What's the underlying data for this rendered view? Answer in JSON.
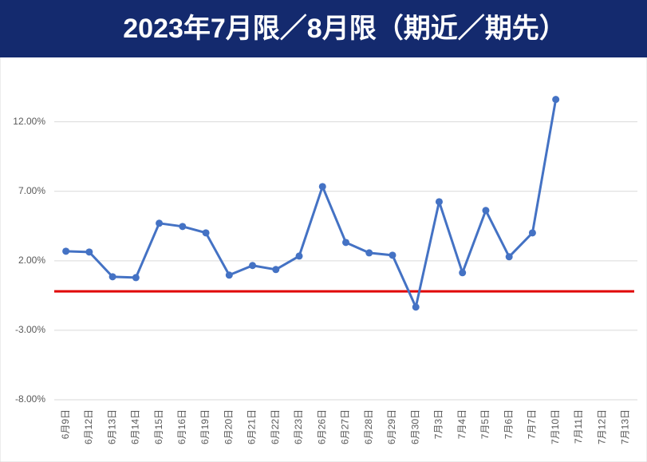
{
  "chart_data": {
    "type": "line",
    "title": "2023年7月限／8月限（期近／期先）",
    "categories": [
      "6月9日",
      "6月12日",
      "6月13日",
      "6月14日",
      "6月15日",
      "6月16日",
      "6月19日",
      "6月20日",
      "6月21日",
      "6月22日",
      "6月23日",
      "6月26日",
      "6月27日",
      "6月28日",
      "6月29日",
      "6月30日",
      "7月3日",
      "7月4日",
      "7月5日",
      "7月6日",
      "7月7日",
      "7月10日",
      "7月11日",
      "7月12日",
      "7月13日"
    ],
    "values": [
      2.69,
      2.63,
      0.85,
      0.79,
      4.7,
      4.47,
      4.01,
      0.97,
      1.66,
      1.37,
      2.34,
      7.34,
      3.32,
      2.57,
      2.4,
      -1.33,
      6.25,
      1.14,
      5.62,
      2.29,
      4.01,
      13.61,
      null,
      null,
      null
    ],
    "color": "#4472c4",
    "ylim": [
      -8,
      16
    ],
    "yticks": [
      {
        "value": -8,
        "label": "-8.00%"
      },
      {
        "value": -3,
        "label": "-3.00%"
      },
      {
        "value": 2,
        "label": "2.00%"
      },
      {
        "value": 7,
        "label": "7.00%"
      },
      {
        "value": 12,
        "label": "12.00%"
      }
    ],
    "grid": true,
    "reference_line": {
      "value": -0.2,
      "color": "#e00000"
    }
  }
}
